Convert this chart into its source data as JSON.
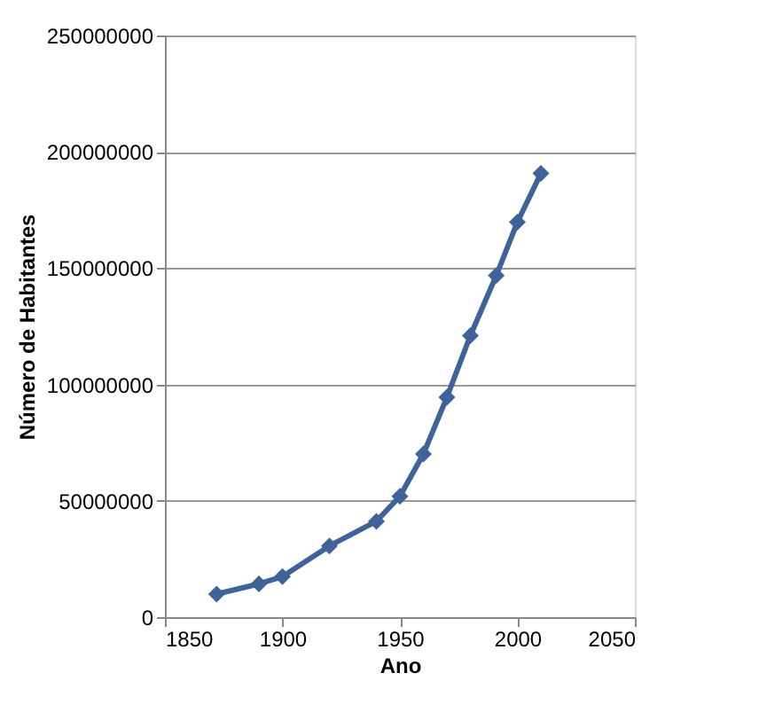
{
  "chart_data": {
    "type": "line",
    "xlabel": "Ano",
    "ylabel": "Número de Habitantes",
    "x": [
      1872,
      1890,
      1900,
      1920,
      1940,
      1950,
      1960,
      1970,
      1980,
      1991,
      2000,
      2010
    ],
    "series": [
      {
        "color": "#3f6399",
        "values": [
          9900000,
          14300000,
          17400000,
          30600000,
          41200000,
          51900000,
          70100000,
          94500000,
          121000000,
          146800000,
          169800000,
          190700000
        ]
      }
    ],
    "xlim": [
      1850,
      2050
    ],
    "xticks": [
      1850,
      1900,
      1950,
      2000,
      2050
    ],
    "ylim": [
      0,
      250000000
    ],
    "yticks": [
      0,
      50000000,
      100000000,
      150000000,
      200000000,
      250000000
    ],
    "grid": "y",
    "marker": "diamond",
    "line_style": "solid"
  }
}
